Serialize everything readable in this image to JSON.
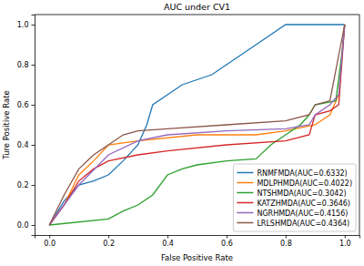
{
  "chart_data": {
    "type": "line",
    "title": "AUC under CV1",
    "x_label": "False Positive Rate",
    "y_label": "Ture Positive Rate",
    "xlim": [
      -0.05,
      1.05
    ],
    "ylim": [
      -0.05,
      1.05
    ],
    "xticks": [
      {
        "value": 0,
        "label": "0.0"
      },
      0.2,
      0.4,
      0.6,
      0.8,
      {
        "value": 1,
        "label": "1.0"
      }
    ],
    "yticks": [
      {
        "value": 0,
        "label": "0.0"
      },
      0.2,
      0.4,
      0.6,
      0.8,
      {
        "value": 1,
        "label": "1.0"
      }
    ],
    "grid": false,
    "legend": "lower right",
    "series": [
      {
        "name": "RNMFMDA(AUC=0.6332)",
        "color": "#1f77b4",
        "x": [
          0,
          0.05,
          0.1,
          0.15,
          0.2,
          0.25,
          0.3,
          0.33,
          0.35,
          0.4,
          0.45,
          0.55,
          0.6,
          0.65,
          0.7,
          0.75,
          0.8,
          1.0
        ],
        "values": [
          0,
          0.12,
          0.2,
          0.22,
          0.25,
          0.32,
          0.4,
          0.5,
          0.6,
          0.65,
          0.7,
          0.75,
          0.8,
          0.85,
          0.9,
          0.95,
          1.0,
          1.0
        ]
      },
      {
        "name": "MDLPHMDA(AUC=0.4022)",
        "color": "#ff7f0e",
        "x": [
          0,
          0.05,
          0.1,
          0.15,
          0.2,
          0.3,
          0.5,
          0.7,
          0.8,
          0.9,
          0.95,
          0.98,
          1.0
        ],
        "values": [
          0,
          0.1,
          0.25,
          0.32,
          0.4,
          0.42,
          0.45,
          0.45,
          0.47,
          0.5,
          0.55,
          0.65,
          1.0
        ]
      },
      {
        "name": "NTSHMDA(AUC=0.3042)",
        "color": "#2ca02c",
        "x": [
          0,
          0.2,
          0.25,
          0.3,
          0.35,
          0.4,
          0.45,
          0.5,
          0.6,
          0.7,
          0.75,
          0.8,
          0.85,
          0.88,
          0.9,
          0.97,
          0.99,
          1.0
        ],
        "values": [
          0,
          0.03,
          0.07,
          0.1,
          0.15,
          0.25,
          0.28,
          0.3,
          0.32,
          0.33,
          0.4,
          0.45,
          0.5,
          0.55,
          0.6,
          0.62,
          0.85,
          1.0
        ]
      },
      {
        "name": "KATZHMDA(AUC=0.3646)",
        "color": "#d62728",
        "x": [
          0,
          0.05,
          0.1,
          0.15,
          0.2,
          0.3,
          0.4,
          0.6,
          0.8,
          0.88,
          0.9,
          0.95,
          0.98,
          1.0
        ],
        "values": [
          0,
          0.1,
          0.22,
          0.28,
          0.32,
          0.35,
          0.37,
          0.4,
          0.42,
          0.45,
          0.55,
          0.57,
          0.6,
          1.0
        ]
      },
      {
        "name": "NGRHMDA(AUC=0.4156)",
        "color": "#9467bd",
        "x": [
          0,
          0.05,
          0.1,
          0.2,
          0.3,
          0.4,
          0.6,
          0.8,
          0.88,
          0.9,
          0.95,
          0.98,
          1.0
        ],
        "values": [
          0,
          0.1,
          0.2,
          0.35,
          0.42,
          0.45,
          0.47,
          0.48,
          0.5,
          0.55,
          0.6,
          0.65,
          1.0
        ]
      },
      {
        "name": "LRLSHMDA(AUC=0.4364)",
        "color": "#8c564b",
        "x": [
          0,
          0.05,
          0.1,
          0.15,
          0.2,
          0.25,
          0.3,
          0.4,
          0.6,
          0.8,
          0.88,
          0.9,
          0.95,
          1.0
        ],
        "values": [
          0,
          0.15,
          0.28,
          0.35,
          0.4,
          0.45,
          0.47,
          0.48,
          0.5,
          0.52,
          0.55,
          0.6,
          0.62,
          1.0
        ]
      }
    ]
  }
}
